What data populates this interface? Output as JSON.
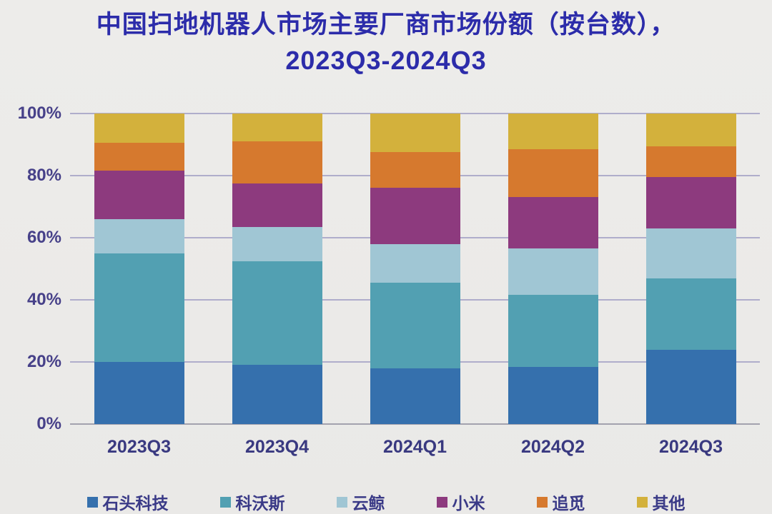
{
  "chart_data": {
    "type": "bar",
    "variant": "stacked-100-percent",
    "title_line1": "中国扫地机器人市场主要厂商市场份额（按台数），",
    "title_line2": "2023Q3-2024Q3",
    "title_color": "#2c2caa",
    "categories": [
      "2023Q3",
      "2023Q4",
      "2024Q1",
      "2024Q2",
      "2024Q3"
    ],
    "series": [
      {
        "name": "石头科技",
        "color": "#3570ad",
        "values": [
          20,
          19,
          18,
          18.5,
          24
        ]
      },
      {
        "name": "科沃斯",
        "color": "#52a0b2",
        "values": [
          35,
          33.5,
          27.5,
          23,
          23
        ]
      },
      {
        "name": "云鲸",
        "color": "#a0c6d4",
        "values": [
          11,
          11,
          12.5,
          15,
          16
        ]
      },
      {
        "name": "小米",
        "color": "#8d3a7e",
        "values": [
          15.5,
          14,
          18,
          16.5,
          16.5
        ]
      },
      {
        "name": "追觅",
        "color": "#d6792e",
        "values": [
          9,
          13.5,
          11.5,
          15.5,
          10
        ]
      },
      {
        "name": "其他",
        "color": "#d3b13c",
        "values": [
          9.5,
          9,
          12.5,
          11.5,
          10.5
        ]
      }
    ],
    "y_tick_values": [
      0,
      20,
      40,
      60,
      80,
      100
    ],
    "y_tick_labels": [
      "0%",
      "20%",
      "40%",
      "60%",
      "80%",
      "100%"
    ],
    "ylim": [
      0,
      100
    ],
    "grid": true,
    "legend_position": "bottom",
    "xlabel": "",
    "ylabel": ""
  }
}
